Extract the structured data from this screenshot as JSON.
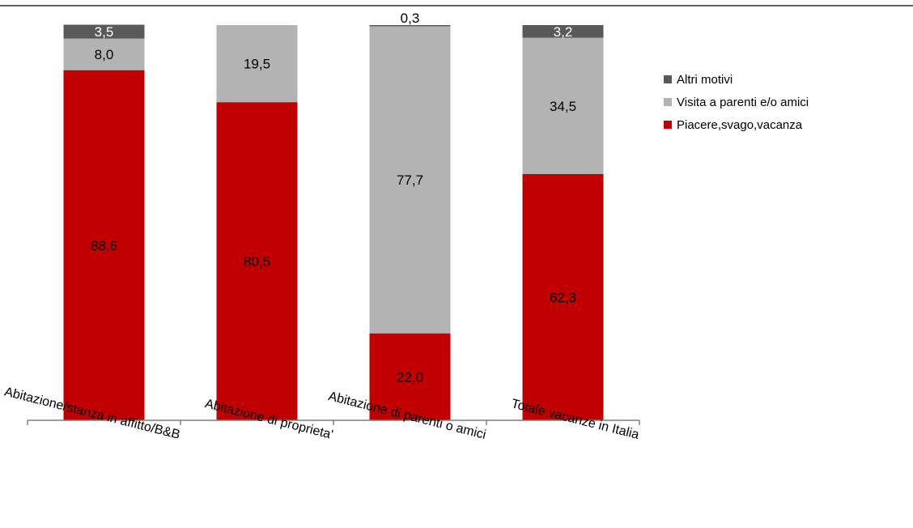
{
  "chart_data": {
    "type": "bar",
    "stacked": true,
    "categories": [
      "Abitazione/stanza in affitto/B&B",
      "Abitazione di proprieta'",
      "Abitazione di parenti o amici",
      "Totale vacanze in Italia"
    ],
    "series": [
      {
        "name": "Piacere,svago,vacanza",
        "color": "#c00000",
        "label_color": "#000000",
        "values": [
          88.6,
          80.5,
          22.0,
          62.3
        ],
        "labels": [
          "88,6",
          "80,5",
          "22,0",
          "62,3"
        ]
      },
      {
        "name": "Visita a parenti e/o amici",
        "color": "#b3b3b3",
        "label_color": "#000000",
        "values": [
          8.0,
          19.5,
          77.7,
          34.5
        ],
        "labels": [
          "8,0",
          "19,5",
          "77,7",
          "34,5"
        ]
      },
      {
        "name": "Altri motivi",
        "color": "#595959",
        "label_color": "#ffffff",
        "values": [
          3.5,
          0.0,
          0.3,
          3.2
        ],
        "labels": [
          "3,5",
          "",
          "0,3",
          "3,2"
        ]
      }
    ],
    "legend_order": [
      "Altri motivi",
      "Visita a parenti e/o amici",
      "Piacere,svago,vacanza"
    ],
    "legend_position": "right",
    "ylim": [
      0,
      100
    ],
    "grid": false,
    "xlabel": "",
    "ylabel": ""
  }
}
